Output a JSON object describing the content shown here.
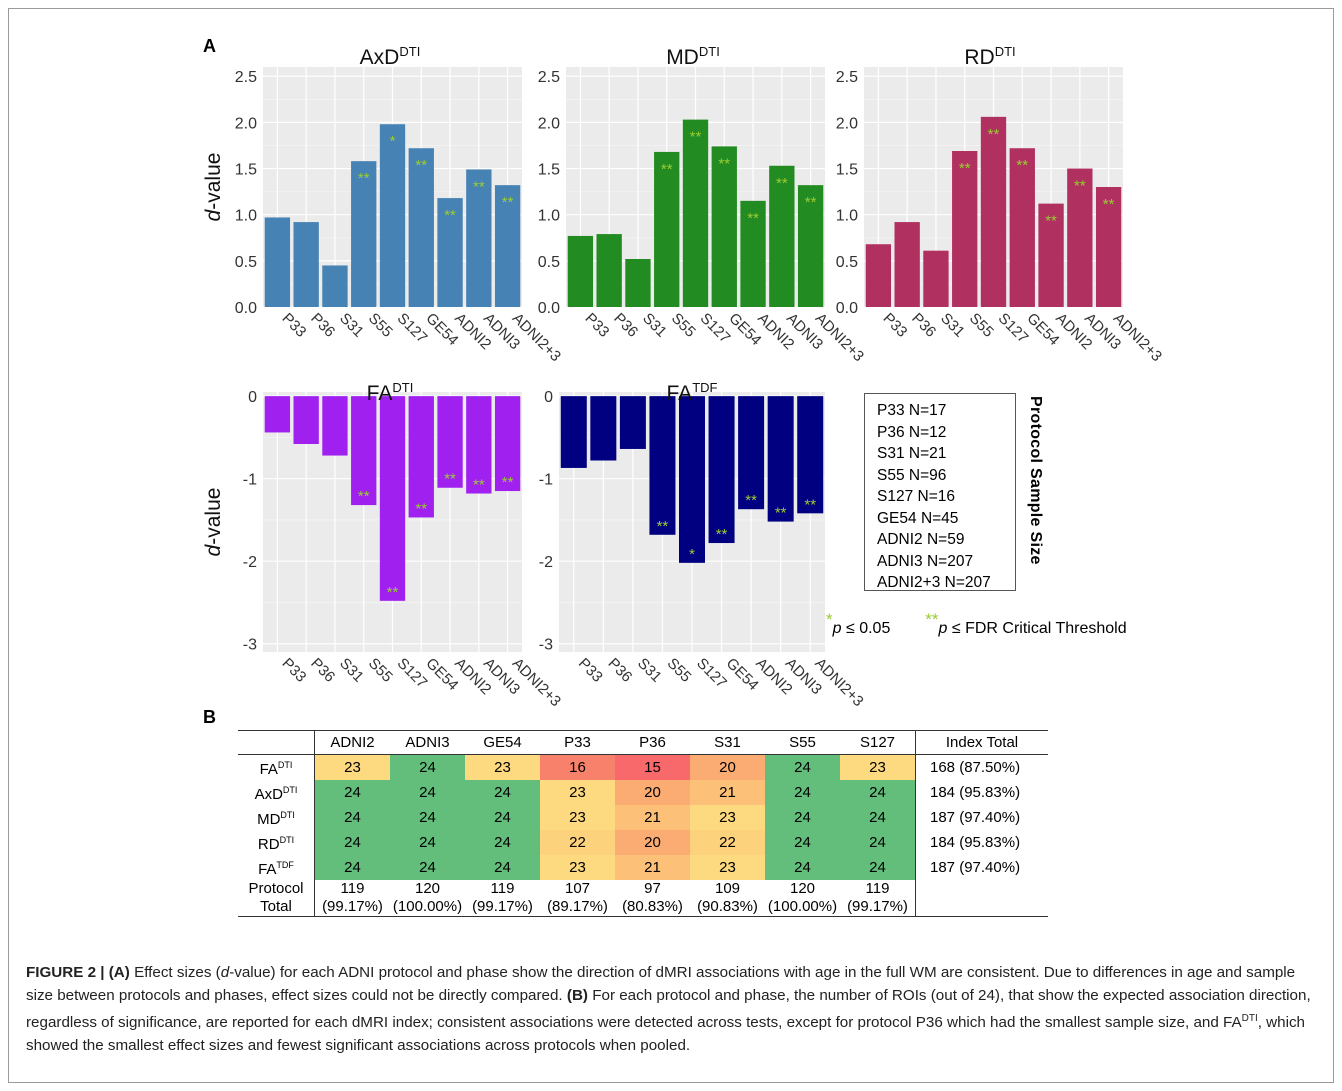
{
  "panel_a_label": "A",
  "panel_b_label": "B",
  "colors": {
    "AxD": "#4682b4",
    "MD": "#228b22",
    "RD": "#b03060",
    "FA_DTI": "#a020f0",
    "FA_TDF": "#000080",
    "star": "#9acd32",
    "plot_bg": "#ebebeb"
  },
  "y_axis_label": {
    "italic": "d",
    "rest": "-value"
  },
  "protocol_box": {
    "title": "Protocol Sample Size",
    "entries": [
      "P33 N=17",
      "P36 N=12",
      "S31 N=21",
      "S55 N=96",
      "S127 N=16",
      "GE54 N=45",
      "ADNI2 N=59",
      "ADNI3 N=207",
      "ADNI2+3 N=207"
    ]
  },
  "legend": {
    "single_star": "*",
    "single_label": "p ≤ 0.05",
    "double_star": "**",
    "double_label": "p ≤ FDR Critical Threshold"
  },
  "chart_data": [
    {
      "type": "bar",
      "title": "AxD",
      "title_sup": "DTI",
      "ylabel": "d-value",
      "ylim": [
        0,
        2.6
      ],
      "yticks": [
        "0.0",
        "0.5",
        "1.0",
        "1.5",
        "2.0",
        "2.5"
      ],
      "categories": [
        "P33",
        "P36",
        "S31",
        "S55",
        "S127",
        "GE54",
        "ADNI2",
        "ADNI3",
        "ADNI2+3"
      ],
      "values": [
        0.97,
        0.92,
        0.45,
        1.58,
        1.98,
        1.72,
        1.18,
        1.49,
        1.32
      ],
      "significance": [
        "",
        "",
        "",
        "**",
        "*",
        "**",
        "**",
        "**",
        "**"
      ]
    },
    {
      "type": "bar",
      "title": "MD",
      "title_sup": "DTI",
      "ylabel": "",
      "ylim": [
        0,
        2.6
      ],
      "yticks": [
        "0.0",
        "0.5",
        "1.0",
        "1.5",
        "2.0",
        "2.5"
      ],
      "categories": [
        "P33",
        "P36",
        "S31",
        "S55",
        "S127",
        "GE54",
        "ADNI2",
        "ADNI3",
        "ADNI2+3"
      ],
      "values": [
        0.77,
        0.79,
        0.52,
        1.68,
        2.03,
        1.74,
        1.15,
        1.53,
        1.32
      ],
      "significance": [
        "",
        "",
        "",
        "**",
        "**",
        "**",
        "**",
        "**",
        "**"
      ]
    },
    {
      "type": "bar",
      "title": "RD",
      "title_sup": "DTI",
      "ylabel": "",
      "ylim": [
        0,
        2.6
      ],
      "yticks": [
        "0.0",
        "0.5",
        "1.0",
        "1.5",
        "2.0",
        "2.5"
      ],
      "categories": [
        "P33",
        "P36",
        "S31",
        "S55",
        "S127",
        "GE54",
        "ADNI2",
        "ADNI3",
        "ADNI2+3"
      ],
      "values": [
        0.68,
        0.92,
        0.61,
        1.69,
        2.06,
        1.72,
        1.12,
        1.5,
        1.3
      ],
      "significance": [
        "",
        "",
        "",
        "**",
        "**",
        "**",
        "**",
        "**",
        "**"
      ]
    },
    {
      "type": "bar",
      "title": "FA",
      "title_sup": "DTI",
      "ylabel": "d-value",
      "ylim": [
        -3.1,
        0.05
      ],
      "yticks": [
        "0",
        "-1",
        "-2",
        "-3"
      ],
      "categories": [
        "P33",
        "P36",
        "S31",
        "S55",
        "S127",
        "GE54",
        "ADNI2",
        "ADNI3",
        "ADNI2+3"
      ],
      "values": [
        -0.44,
        -0.58,
        -0.72,
        -1.32,
        -2.48,
        -1.47,
        -1.11,
        -1.18,
        -1.15
      ],
      "significance": [
        "",
        "",
        "",
        "**",
        "**",
        "**",
        "**",
        "**",
        "**"
      ]
    },
    {
      "type": "bar",
      "title": "FA",
      "title_sup": "TDF",
      "ylabel": "",
      "ylim": [
        -3.1,
        0.05
      ],
      "yticks": [
        "0",
        "-1",
        "-2",
        "-3"
      ],
      "categories": [
        "P33",
        "P36",
        "S31",
        "S55",
        "S127",
        "GE54",
        "ADNI2",
        "ADNI3",
        "ADNI2+3"
      ],
      "values": [
        -0.87,
        -0.78,
        -0.64,
        -1.68,
        -2.02,
        -1.78,
        -1.37,
        -1.52,
        -1.42
      ],
      "significance": [
        "",
        "",
        "",
        "**",
        "*",
        "**",
        "**",
        "**",
        "**"
      ]
    }
  ],
  "table": {
    "headers": [
      "",
      "ADNI2",
      "ADNI3",
      "GE54",
      "P33",
      "P36",
      "S31",
      "S55",
      "S127",
      "Index Total"
    ],
    "rows": [
      {
        "label": "FA",
        "sup": "DTI",
        "values": [
          "23",
          "24",
          "23",
          "16",
          "15",
          "20",
          "24",
          "23"
        ],
        "total": "168 (87.50%)"
      },
      {
        "label": "AxD",
        "sup": "DTI",
        "values": [
          "24",
          "24",
          "24",
          "23",
          "20",
          "21",
          "24",
          "24"
        ],
        "total": "184 (95.83%)"
      },
      {
        "label": "MD",
        "sup": "DTI",
        "values": [
          "24",
          "24",
          "24",
          "23",
          "21",
          "23",
          "24",
          "24"
        ],
        "total": "187 (97.40%)"
      },
      {
        "label": "RD",
        "sup": "DTI",
        "values": [
          "24",
          "24",
          "24",
          "22",
          "20",
          "22",
          "24",
          "24"
        ],
        "total": "184 (95.83%)"
      },
      {
        "label": "FA",
        "sup": "TDF",
        "values": [
          "24",
          "24",
          "24",
          "23",
          "21",
          "23",
          "24",
          "24"
        ],
        "total": "187 (97.40%)"
      }
    ],
    "protocol_total_label": [
      "Protocol",
      "Total"
    ],
    "protocol_totals": [
      {
        "n": "119",
        "pct": "(99.17%)"
      },
      {
        "n": "120",
        "pct": "(100.00%)"
      },
      {
        "n": "119",
        "pct": "(99.17%)"
      },
      {
        "n": "107",
        "pct": "(89.17%)"
      },
      {
        "n": "97",
        "pct": "(80.83%)"
      },
      {
        "n": "109",
        "pct": "(90.83%)"
      },
      {
        "n": "120",
        "pct": "(100.00%)"
      },
      {
        "n": "119",
        "pct": "(99.17%)"
      }
    ],
    "cell_colors": {
      "24": "#63be7b",
      "23": "#fdd97f",
      "22": "#fdd27d",
      "21": "#fcc079",
      "20": "#fbac72",
      "16": "#f8816b",
      "15": "#f8696b"
    }
  },
  "caption": {
    "figure_label": "FIGURE 2 |",
    "a_label": "(A)",
    "a_text_1": "Effect sizes (",
    "a_text_italic": "d",
    "a_text_2": "-value) for each ADNI protocol and phase show the direction of dMRI associations with age in the full WM are consistent. Due to differences in age and sample size between protocols and phases, effect sizes could not be directly compared.",
    "b_label": "(B)",
    "b_text_1": "For each protocol and phase, the number of ROIs (out of 24), that show the expected association direction, regardless of significance, are reported for each dMRI index; consistent associations were detected across tests, except for protocol P36 which had the smallest sample size, and FA",
    "b_sup": "DTI",
    "b_text_2": ", which showed the smallest effect sizes and fewest significant associations across protocols when pooled."
  }
}
